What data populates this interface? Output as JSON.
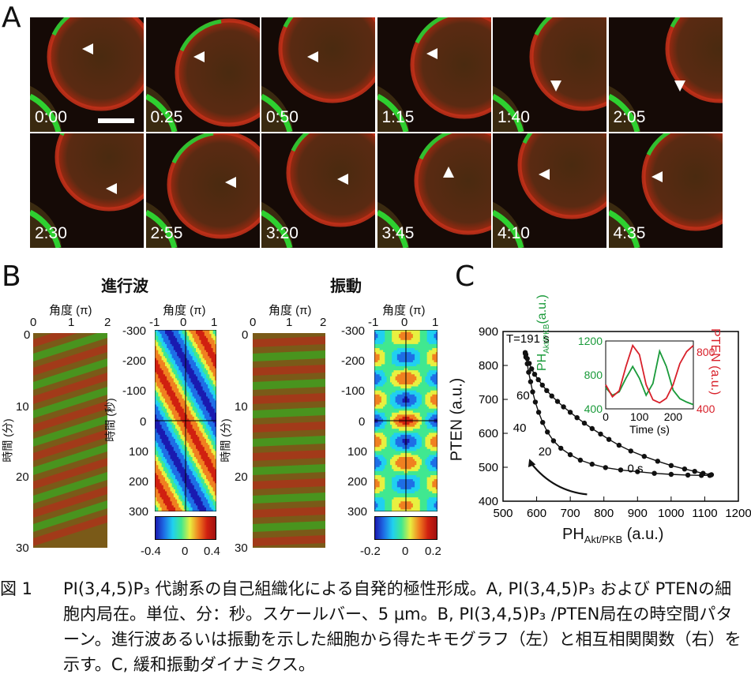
{
  "panels": {
    "a": "A",
    "b": "B",
    "c": "C"
  },
  "panel_a": {
    "frames": [
      {
        "time": "0:00"
      },
      {
        "time": "0:25"
      },
      {
        "time": "0:50"
      },
      {
        "time": "1:15"
      },
      {
        "time": "1:40"
      },
      {
        "time": "2:05"
      },
      {
        "time": "2:30"
      },
      {
        "time": "2:55"
      },
      {
        "time": "3:20"
      },
      {
        "time": "3:45"
      },
      {
        "time": "4:10"
      },
      {
        "time": "4:35"
      }
    ]
  },
  "panel_b": {
    "travelling_wave_title": "進行波",
    "oscillation_title": "振動",
    "angle_label": "角度 (π)",
    "time_min_label": "時間 (分)",
    "time_sec_label": "時間 (秒)",
    "kymo_x_ticks": [
      "0",
      "1",
      "2"
    ],
    "kymo_y_ticks": [
      "0",
      "10",
      "20",
      "30"
    ],
    "corr_x_ticks": [
      "-1",
      "0",
      "1"
    ],
    "corr_y_ticks": [
      "-300",
      "-200",
      "-100",
      "0",
      "100",
      "200",
      "300"
    ],
    "colorbar1_ticks": [
      "-0.4",
      "0",
      "0.4"
    ],
    "colorbar2_ticks": [
      "-0.2",
      "0",
      "0.2"
    ]
  },
  "panel_c": {
    "annotation": "T=191 s",
    "point_labels": [
      "60",
      "40",
      "20",
      "0 s"
    ],
    "ylabel": "PTEN (a.u.)",
    "xlabel_main": "PH",
    "xlabel_sub": "Akt/PKB",
    "xlabel_unit": " (a.u.)",
    "inset": {
      "left_label_main": "PH",
      "left_label_sub": "Akt/PKB",
      "left_label_unit": "(a.u.)",
      "right_label": "PTEN (a.u.)",
      "xlabel": "Time (s)",
      "left_ticks": [
        "1200",
        "800",
        "400"
      ],
      "right_ticks": [
        "800",
        "400"
      ],
      "x_ticks": [
        "0",
        "100",
        "200"
      ]
    }
  },
  "chart_data": {
    "type": "scatter",
    "title": "",
    "xlabel": "PHAkt/PKB (a.u.)",
    "ylabel": "PTEN (a.u.)",
    "xlim": [
      500,
      1200
    ],
    "ylim": [
      400,
      900
    ],
    "xticks": [
      500,
      600,
      700,
      800,
      900,
      1000,
      1100,
      1200
    ],
    "yticks": [
      400,
      500,
      600,
      700,
      800,
      900
    ],
    "series": [
      {
        "x": [
          1120,
          1095,
          1070,
          1040,
          1000,
          960,
          920,
          880,
          845,
          815,
          790,
          765,
          742,
          720,
          700,
          680,
          662,
          645,
          630,
          617,
          605,
          594,
          585,
          578,
          572,
          568,
          566,
          566,
          568,
          572,
          576,
          582,
          588,
          596,
          606,
          618,
          632,
          650,
          672,
          700,
          730,
          765,
          805,
          850,
          900,
          950,
          1000,
          1050,
          1090,
          1115
        ],
        "y": [
          478,
          482,
          488,
          495,
          505,
          518,
          532,
          548,
          565,
          582,
          598,
          614,
          630,
          646,
          662,
          678,
          694,
          710,
          726,
          742,
          758,
          774,
          790,
          806,
          820,
          832,
          838,
          835,
          825,
          805,
          780,
          752,
          722,
          692,
          662,
          632,
          604,
          578,
          556,
          537,
          521,
          509,
          499,
          492,
          487,
          482,
          479,
          477,
          476,
          476
        ]
      }
    ],
    "inset": {
      "type": "line",
      "xlabel": "Time (s)",
      "xlim": [
        0,
        260
      ],
      "series": [
        {
          "name": "PHAkt/PKB",
          "color": "#1a9a3a",
          "x": [
            0,
            20,
            40,
            60,
            80,
            100,
            120,
            140,
            160,
            180,
            200,
            220,
            240,
            260
          ],
          "y": [
            650,
            560,
            600,
            760,
            900,
            760,
            560,
            700,
            1080,
            900,
            620,
            520,
            480,
            450
          ]
        },
        {
          "name": "PTEN",
          "color": "#d8202a",
          "x": [
            0,
            20,
            40,
            60,
            80,
            100,
            120,
            140,
            160,
            180,
            200,
            220,
            240,
            260
          ],
          "y": [
            560,
            480,
            520,
            680,
            820,
            760,
            560,
            460,
            440,
            470,
            560,
            700,
            780,
            820
          ]
        }
      ]
    }
  },
  "caption": {
    "number": "図 1",
    "text": "PI(3,4,5)P₃ 代謝系の自己組織化による自発的極性形成。A, PI(3,4,5)P₃ および PTENの細胞内局在。単位、分：秒。スケールバー、5 μm。B, PI(3,4,5)P₃ /PTEN局在の時空間パターン。進行波あるいは振動を示した細胞から得たキモグラフ（左）と相互相関関数（右）を示す。C, 緩和振動ダイナミクス。"
  },
  "colors": {
    "green": "#22c02a",
    "red": "#d42a1a",
    "dark_bg": "#140a06"
  }
}
